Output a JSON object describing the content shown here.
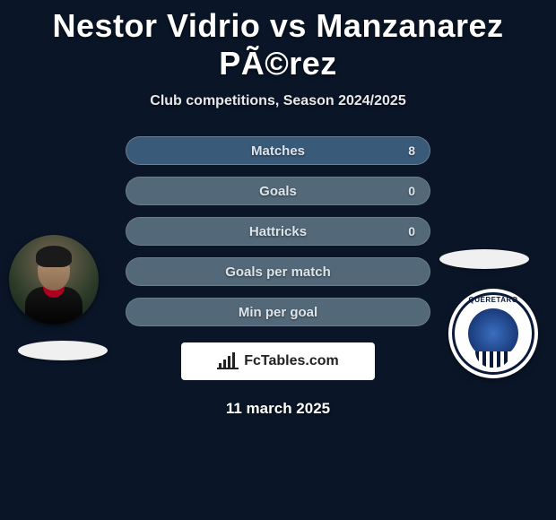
{
  "title": "Nestor Vidrio vs Manzanarez PÃ©rez",
  "subtitle": "Club competitions, Season 2024/2025",
  "date": "11 march 2025",
  "brand": "FcTables.com",
  "colors": {
    "background": "#0a1628",
    "bar_bg": "#536878",
    "bar_fill_right": "#3a5a7a",
    "text": "#dce4e9"
  },
  "player_left": {
    "name": "Nestor Vidrio"
  },
  "player_right": {
    "name": "Manzanarez PÃ©rez",
    "crest_text": "QUERETARO"
  },
  "stats": [
    {
      "label": "Matches",
      "right_value": "8",
      "right_fill_pct": 100
    },
    {
      "label": "Goals",
      "right_value": "0",
      "right_fill_pct": 0
    },
    {
      "label": "Hattricks",
      "right_value": "0",
      "right_fill_pct": 0
    },
    {
      "label": "Goals per match",
      "right_value": "",
      "right_fill_pct": 0
    },
    {
      "label": "Min per goal",
      "right_value": "",
      "right_fill_pct": 0
    }
  ]
}
